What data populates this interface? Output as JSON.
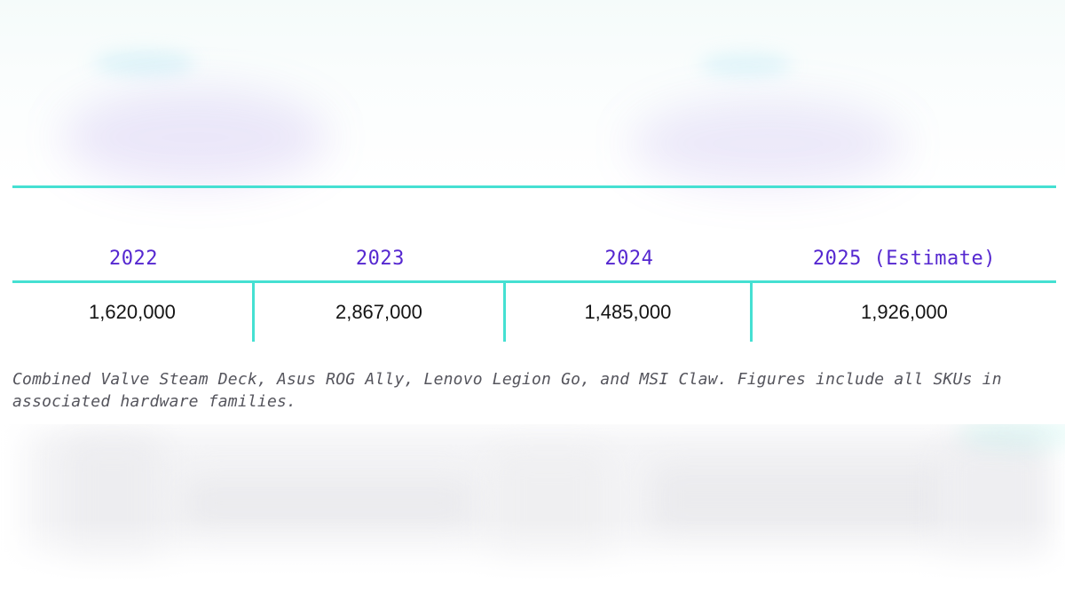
{
  "table": {
    "columns": [
      {
        "year": "2022",
        "value": "1,620,000"
      },
      {
        "year": "2023",
        "value": "2,867,000"
      },
      {
        "year": "2024",
        "value": "1,485,000"
      },
      {
        "year": "2025 (Estimate)",
        "value": "1,926,000"
      }
    ]
  },
  "footnote": {
    "text": "Combined Valve Steam Deck, Asus ROG Ally, Lenovo Legion Go, and MSI Claw. Figures include all SKUs in associated hardware families."
  },
  "colors": {
    "accent_teal": "#45e0d2",
    "header_purple": "#5527d0",
    "value_text": "#141414",
    "footnote_gray": "#55555d"
  },
  "chart_data": {
    "type": "table",
    "categories": [
      "2022",
      "2023",
      "2024",
      "2025 (Estimate)"
    ],
    "values": [
      1620000,
      2867000,
      1485000,
      1926000
    ],
    "value_labels": [
      "1,620,000",
      "2,867,000",
      "1,485,000",
      "1,926,000"
    ],
    "footnote": "Combined Valve Steam Deck, Asus ROG Ally, Lenovo Legion Go, and MSI Claw. Figures include all SKUs in associated hardware families.",
    "layout": {
      "orientation": "horizontal",
      "header_row_color": "#5527d0",
      "grid_color": "#45e0d2"
    }
  }
}
